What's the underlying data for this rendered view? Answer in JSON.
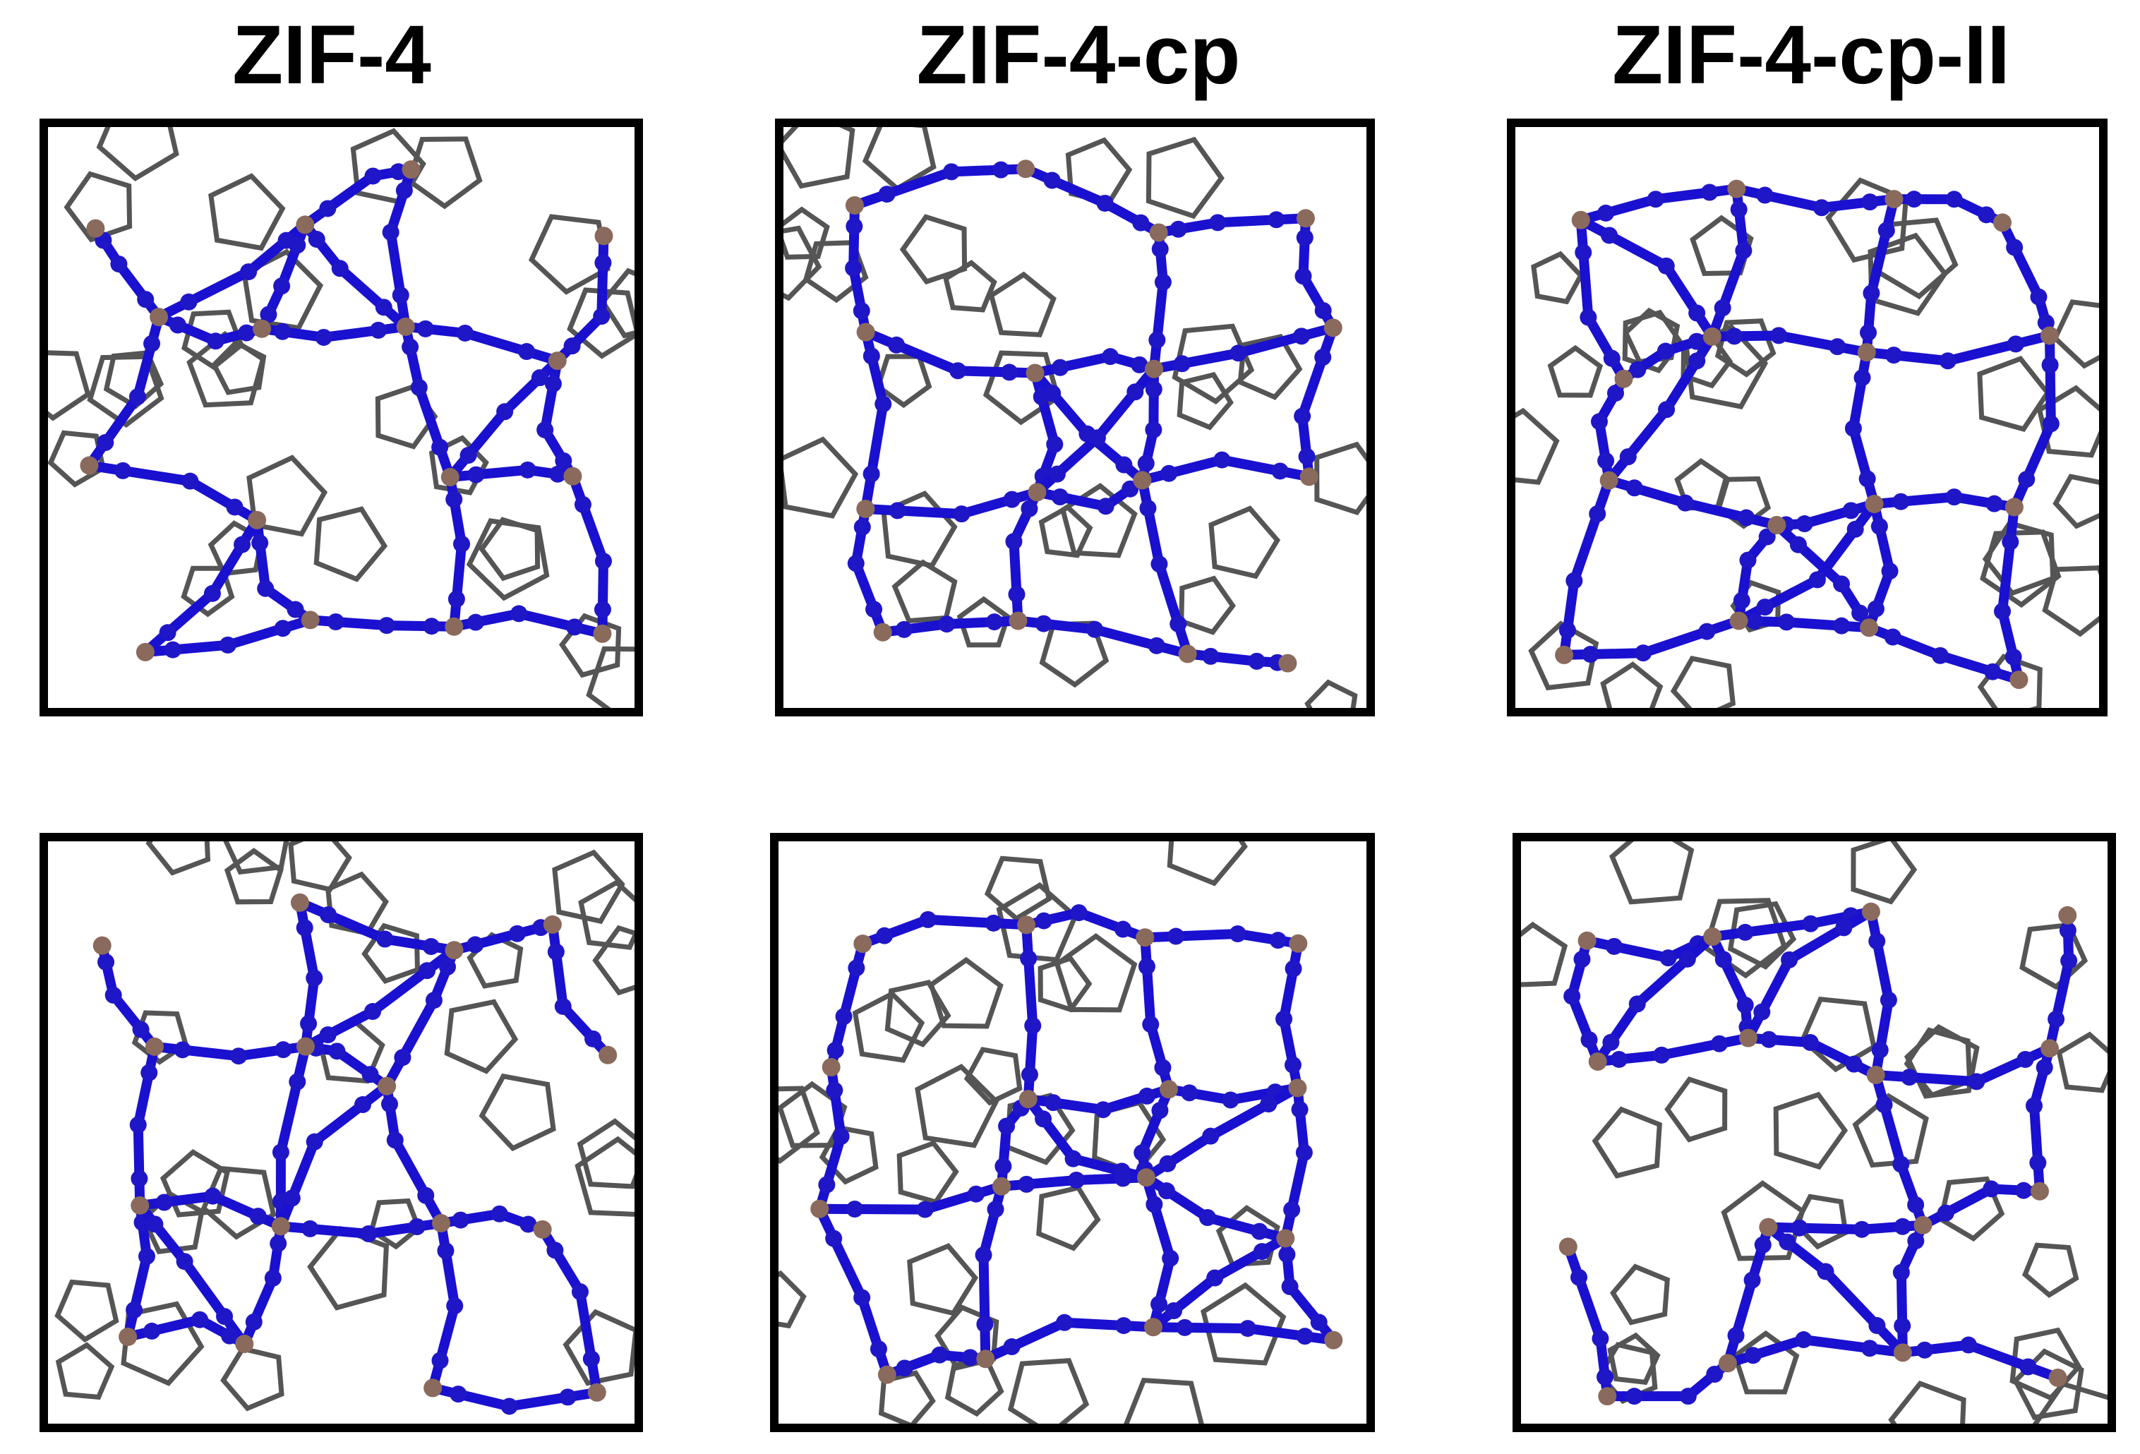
{
  "titles": [
    "ZIF-4",
    "ZIF-4-cp",
    "ZIF-4-cp-II"
  ]
}
